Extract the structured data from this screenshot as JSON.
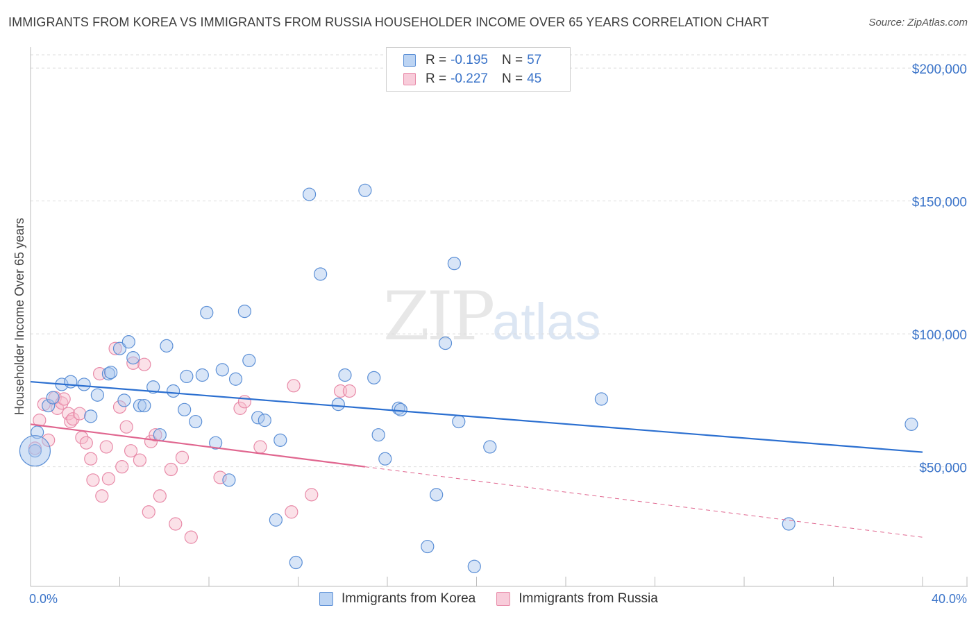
{
  "title": "IMMIGRANTS FROM KOREA VS IMMIGRANTS FROM RUSSIA HOUSEHOLDER INCOME OVER 65 YEARS CORRELATION CHART",
  "source": "Source: ZipAtlas.com",
  "watermark": {
    "zip": "ZIP",
    "atlas": "atlas"
  },
  "legend": {
    "korea": {
      "r_label": "R = ",
      "r_value": "-0.195",
      "n_label": "N = ",
      "n_value": "57"
    },
    "russia": {
      "r_label": "R = ",
      "r_value": "-0.227",
      "n_label": "N = ",
      "n_value": "45"
    }
  },
  "bottom_legend": {
    "korea": "Immigrants from Korea",
    "russia": "Immigrants from Russia"
  },
  "colors": {
    "korea_fill": "#a8c6ee",
    "korea_stroke": "#5b8fd6",
    "korea_line": "#2b6fd0",
    "russia_fill": "#f6bccd",
    "russia_stroke": "#e88aa8",
    "russia_line": "#e0668f",
    "tick_text": "#3b74c9",
    "grid": "#dddddd"
  },
  "chart_data": {
    "type": "scatter",
    "title": "IMMIGRANTS FROM KOREA VS IMMIGRANTS FROM RUSSIA HOUSEHOLDER INCOME OVER 65 YEARS CORRELATION CHART",
    "xlabel": "",
    "ylabel": "Householder Income Over 65 years",
    "xlim": [
      0,
      40
    ],
    "ylim": [
      5000,
      205000
    ],
    "x_tick_labels": [
      "0.0%",
      "40.0%"
    ],
    "y_ticks": [
      50000,
      100000,
      150000,
      200000
    ],
    "y_tick_labels": [
      "$50,000",
      "$100,000",
      "$150,000",
      "$200,000"
    ],
    "grid": true,
    "legend_position": "top-center",
    "series": [
      {
        "name": "Immigrants from Korea",
        "trend": {
          "x": [
            0,
            40
          ],
          "y": [
            82000,
            55500
          ]
        },
        "points": [
          [
            0.2,
            56000
          ],
          [
            0.3,
            63000
          ],
          [
            0.8,
            73000
          ],
          [
            1.0,
            76000
          ],
          [
            1.4,
            81000
          ],
          [
            1.8,
            82000
          ],
          [
            2.4,
            81000
          ],
          [
            2.7,
            69000
          ],
          [
            3.0,
            77000
          ],
          [
            3.5,
            85000
          ],
          [
            3.6,
            85500
          ],
          [
            4.0,
            94500
          ],
          [
            4.2,
            75000
          ],
          [
            4.4,
            97000
          ],
          [
            4.6,
            91000
          ],
          [
            4.9,
            73000
          ],
          [
            5.1,
            73000
          ],
          [
            5.5,
            80000
          ],
          [
            5.8,
            62000
          ],
          [
            6.1,
            95500
          ],
          [
            6.4,
            78500
          ],
          [
            6.9,
            71500
          ],
          [
            7.0,
            84000
          ],
          [
            7.4,
            67000
          ],
          [
            7.7,
            84500
          ],
          [
            7.9,
            108000
          ],
          [
            8.3,
            59000
          ],
          [
            8.6,
            86500
          ],
          [
            8.9,
            45000
          ],
          [
            9.2,
            83000
          ],
          [
            9.6,
            108500
          ],
          [
            9.8,
            90000
          ],
          [
            10.2,
            68500
          ],
          [
            10.5,
            67500
          ],
          [
            11.0,
            30000
          ],
          [
            11.2,
            60000
          ],
          [
            11.9,
            14000
          ],
          [
            12.5,
            152500
          ],
          [
            13.0,
            122500
          ],
          [
            13.8,
            73500
          ],
          [
            14.1,
            84500
          ],
          [
            15.0,
            154000
          ],
          [
            15.4,
            83500
          ],
          [
            15.6,
            62000
          ],
          [
            15.9,
            53000
          ],
          [
            16.5,
            72000
          ],
          [
            16.6,
            71500
          ],
          [
            17.8,
            20000
          ],
          [
            18.2,
            39500
          ],
          [
            18.6,
            96500
          ],
          [
            19.0,
            126500
          ],
          [
            19.2,
            67000
          ],
          [
            19.9,
            12500
          ],
          [
            20.6,
            57500
          ],
          [
            25.6,
            75500
          ],
          [
            34.0,
            28500
          ],
          [
            39.5,
            66000
          ]
        ],
        "big_point": [
          0.2,
          56000
        ]
      },
      {
        "name": "Immigrants from Russia",
        "trend": {
          "x": [
            0,
            15
          ],
          "y": [
            66000,
            50000
          ]
        },
        "trend_extension": {
          "x": [
            15,
            40
          ],
          "y": [
            50000,
            23500
          ]
        },
        "points": [
          [
            0.2,
            57000
          ],
          [
            0.4,
            67500
          ],
          [
            0.6,
            73500
          ],
          [
            0.8,
            60000
          ],
          [
            1.1,
            76000
          ],
          [
            1.2,
            72000
          ],
          [
            1.4,
            74000
          ],
          [
            1.5,
            75500
          ],
          [
            1.7,
            70000
          ],
          [
            1.8,
            67000
          ],
          [
            1.9,
            68000
          ],
          [
            2.2,
            70000
          ],
          [
            2.3,
            61000
          ],
          [
            2.5,
            59000
          ],
          [
            2.7,
            53000
          ],
          [
            2.8,
            45000
          ],
          [
            3.1,
            85000
          ],
          [
            3.2,
            39000
          ],
          [
            3.4,
            57500
          ],
          [
            3.5,
            45500
          ],
          [
            3.8,
            94500
          ],
          [
            4.0,
            72500
          ],
          [
            4.1,
            50000
          ],
          [
            4.3,
            65000
          ],
          [
            4.5,
            56000
          ],
          [
            4.6,
            89000
          ],
          [
            4.9,
            52500
          ],
          [
            5.1,
            88500
          ],
          [
            5.3,
            33000
          ],
          [
            5.4,
            59500
          ],
          [
            5.6,
            62000
          ],
          [
            5.8,
            39000
          ],
          [
            6.3,
            49000
          ],
          [
            6.5,
            28500
          ],
          [
            6.8,
            53500
          ],
          [
            7.2,
            23500
          ],
          [
            8.5,
            46000
          ],
          [
            9.4,
            72000
          ],
          [
            9.6,
            74500
          ],
          [
            10.3,
            57500
          ],
          [
            11.7,
            33000
          ],
          [
            11.8,
            80500
          ],
          [
            12.6,
            39500
          ],
          [
            13.9,
            78500
          ],
          [
            14.3,
            78500
          ]
        ]
      }
    ]
  }
}
